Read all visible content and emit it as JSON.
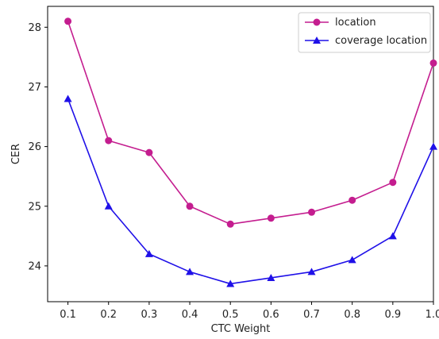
{
  "chart_data": {
    "type": "line",
    "title": "",
    "xlabel": "CTC Weight",
    "ylabel": "CER",
    "x": [
      0.1,
      0.2,
      0.3,
      0.4,
      0.5,
      0.6,
      0.7,
      0.8,
      0.9,
      1.0
    ],
    "x_tick_labels": [
      "0.1",
      "0.2",
      "0.3",
      "0.4",
      "0.5",
      "0.6",
      "0.7",
      "0.8",
      "0.9",
      "1.0"
    ],
    "y_ticks": [
      24,
      25,
      26,
      27,
      28
    ],
    "y_tick_labels": [
      "24",
      "25",
      "26",
      "27",
      "28"
    ],
    "xlim": [
      0.05,
      1.0
    ],
    "ylim": [
      23.4,
      28.35
    ],
    "grid": false,
    "legend_position": "top-right",
    "series": [
      {
        "name": "location",
        "color": "#c41d8f",
        "marker": "circle",
        "values": [
          28.1,
          26.1,
          25.9,
          25.0,
          24.7,
          24.8,
          24.9,
          25.1,
          25.4,
          27.4
        ]
      },
      {
        "name": "coverage location",
        "color": "#1f10e8",
        "marker": "triangle",
        "values": [
          26.8,
          25.0,
          24.2,
          23.9,
          23.7,
          23.8,
          23.9,
          24.1,
          24.5,
          26.0
        ]
      }
    ]
  }
}
